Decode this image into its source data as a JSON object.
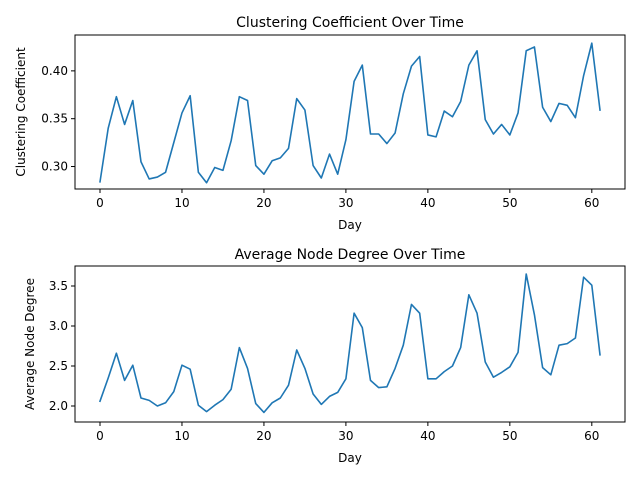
{
  "colors": {
    "series": "#1f77b4"
  },
  "chart_data": [
    {
      "type": "line",
      "title": "Clustering Coefficient Over Time",
      "xlabel": "Day",
      "ylabel": "Clustering Coefficient",
      "xlim": [
        -3.05,
        64.05
      ],
      "ylim": [
        0.2765,
        0.4375
      ],
      "xticks": [
        0,
        10,
        20,
        30,
        40,
        50,
        60
      ],
      "yticks": [
        0.3,
        0.35,
        0.4
      ],
      "ytick_labels": [
        "0.30",
        "0.35",
        "0.40"
      ],
      "grid": false,
      "series": [
        {
          "name": "",
          "x": [
            0,
            1,
            2,
            3,
            4,
            5,
            6,
            7,
            8,
            9,
            10,
            11,
            12,
            13,
            14,
            15,
            16,
            17,
            18,
            19,
            20,
            21,
            22,
            23,
            24,
            25,
            26,
            27,
            28,
            29,
            30,
            31,
            32,
            33,
            34,
            35,
            36,
            37,
            38,
            39,
            40,
            41,
            42,
            43,
            44,
            45,
            46,
            47,
            48,
            49,
            50,
            51,
            52,
            53,
            54,
            55,
            56,
            57,
            58,
            59,
            60,
            61
          ],
          "values": [
            0.284,
            0.34,
            0.373,
            0.344,
            0.369,
            0.305,
            0.287,
            0.289,
            0.294,
            0.325,
            0.356,
            0.374,
            0.294,
            0.283,
            0.299,
            0.296,
            0.327,
            0.373,
            0.369,
            0.301,
            0.292,
            0.306,
            0.309,
            0.319,
            0.371,
            0.359,
            0.301,
            0.288,
            0.313,
            0.292,
            0.328,
            0.389,
            0.406,
            0.334,
            0.334,
            0.324,
            0.335,
            0.376,
            0.405,
            0.415,
            0.333,
            0.331,
            0.358,
            0.352,
            0.368,
            0.406,
            0.421,
            0.349,
            0.334,
            0.344,
            0.333,
            0.356,
            0.421,
            0.425,
            0.362,
            0.347,
            0.366,
            0.364,
            0.351,
            0.395,
            0.429,
            0.359
          ]
        }
      ]
    },
    {
      "type": "line",
      "title": "Average Node Degree Over Time",
      "xlabel": "Day",
      "ylabel": "Average Node Degree",
      "xlim": [
        -3.05,
        64.05
      ],
      "ylim": [
        1.8,
        3.75
      ],
      "xticks": [
        0,
        10,
        20,
        30,
        40,
        50,
        60
      ],
      "yticks": [
        2.0,
        2.5,
        3.0,
        3.5
      ],
      "ytick_labels": [
        "2.0",
        "2.5",
        "3.0",
        "3.5"
      ],
      "grid": false,
      "series": [
        {
          "name": "",
          "x": [
            0,
            1,
            2,
            3,
            4,
            5,
            6,
            7,
            8,
            9,
            10,
            11,
            12,
            13,
            14,
            15,
            16,
            17,
            18,
            19,
            20,
            21,
            22,
            23,
            24,
            25,
            26,
            27,
            28,
            29,
            30,
            31,
            32,
            33,
            34,
            35,
            36,
            37,
            38,
            39,
            40,
            41,
            42,
            43,
            44,
            45,
            46,
            47,
            48,
            49,
            50,
            51,
            52,
            53,
            54,
            55,
            56,
            57,
            58,
            59,
            60,
            61
          ],
          "values": [
            2.06,
            2.35,
            2.66,
            2.32,
            2.51,
            2.1,
            2.07,
            2.0,
            2.04,
            2.18,
            2.51,
            2.46,
            2.01,
            1.93,
            2.01,
            2.08,
            2.21,
            2.73,
            2.47,
            2.03,
            1.92,
            2.04,
            2.1,
            2.26,
            2.7,
            2.47,
            2.15,
            2.02,
            2.12,
            2.17,
            2.34,
            3.16,
            2.98,
            2.32,
            2.23,
            2.24,
            2.47,
            2.76,
            3.27,
            3.16,
            2.34,
            2.34,
            2.43,
            2.5,
            2.73,
            3.39,
            3.16,
            2.55,
            2.36,
            2.42,
            2.49,
            2.67,
            3.65,
            3.14,
            2.48,
            2.39,
            2.76,
            2.78,
            2.85,
            3.61,
            3.51,
            2.64
          ]
        }
      ]
    }
  ]
}
